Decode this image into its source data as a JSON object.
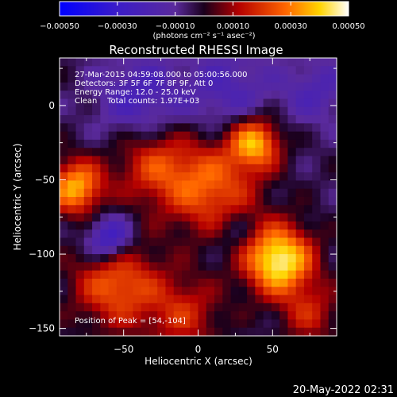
{
  "chart_data": {
    "type": "heatmap",
    "title": "Reconstructed RHESSI Image",
    "xlabel": "Heliocentric X (arcsec)",
    "ylabel": "Heliocentric Y (arcsec)",
    "xlim": [
      -93,
      93
    ],
    "ylim": [
      -155,
      32
    ],
    "x_ticks": [
      {
        "value": -50,
        "label": "−50"
      },
      {
        "value": 0,
        "label": "0"
      },
      {
        "value": 50,
        "label": "50"
      }
    ],
    "y_ticks": [
      {
        "value": 0,
        "label": "0"
      },
      {
        "value": -50,
        "label": "−50"
      },
      {
        "value": -100,
        "label": "−100"
      },
      {
        "value": -150,
        "label": "−150"
      }
    ],
    "colorbar": {
      "min": -0.0005,
      "max": 0.0005,
      "units": "(photons cm⁻² s⁻¹ asec⁻²)",
      "tick_labels": [
        "−0.00050",
        "−0.00030",
        "−0.00010",
        "0.00010",
        "0.00030",
        "0.00050"
      ],
      "tick_values": [
        -0.0005,
        -0.0003,
        -0.0001,
        0.0001,
        0.0003,
        0.0005
      ]
    },
    "annotations": [
      "27-Mar-2015 04:59:08.000 to 05:00:56.000",
      "Detectors: 3F 5F 6F 7F 8F 9F, Att 0",
      "Energy Range: 12.0 - 25.0 keV",
      "Clean    Total counts: 1.97E+03"
    ],
    "peak_label": "Position of Peak = [54,-104]",
    "peak": [
      54,
      -104
    ],
    "sources": [
      {
        "x": 54,
        "y": -104,
        "amp": 0.00052,
        "sigma": 16
      },
      {
        "x": 38,
        "y": -25,
        "amp": 0.0004,
        "sigma": 12
      },
      {
        "x": 8,
        "y": -55,
        "amp": 0.0003,
        "sigma": 22
      },
      {
        "x": -82,
        "y": -55,
        "amp": 0.0004,
        "sigma": 13
      },
      {
        "x": -55,
        "y": -120,
        "amp": 0.0003,
        "sigma": 20
      },
      {
        "x": -30,
        "y": -40,
        "amp": 0.00022,
        "sigma": 18
      },
      {
        "x": 75,
        "y": -140,
        "amp": 0.00018,
        "sigma": 14
      },
      {
        "x": -10,
        "y": -140,
        "amp": 0.0002,
        "sigma": 18
      },
      {
        "x": -60,
        "y": -90,
        "amp": -0.0003,
        "sigma": 11
      },
      {
        "x": -40,
        "y": 5,
        "amp": -0.00018,
        "sigma": 20
      },
      {
        "x": 20,
        "y": 10,
        "amp": -0.00015,
        "sigma": 22
      },
      {
        "x": 80,
        "y": 10,
        "amp": -0.00014,
        "sigma": 16
      },
      {
        "x": 25,
        "y": -85,
        "amp": -0.0001,
        "sigma": 10
      }
    ]
  },
  "footer": {
    "timestamp": "20-May-2022 02:31"
  }
}
